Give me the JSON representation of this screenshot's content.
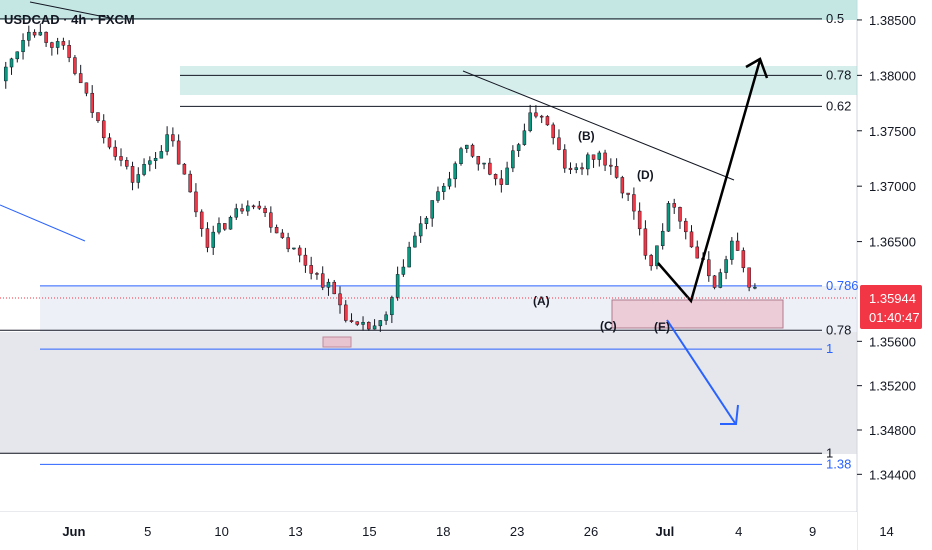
{
  "symbol_header": "USDCAD · 4h · FXCM",
  "price_tag": {
    "price": "1.35944",
    "countdown": "01:40:47",
    "color": "#f23645"
  },
  "chart_data": {
    "type": "candlestick",
    "ylim": [
      1.3406,
      1.3868
    ],
    "y_ticks": [
      "1.38500",
      "1.38000",
      "1.37500",
      "1.37000",
      "1.36500",
      "1.35600",
      "1.35200",
      "1.34800",
      "1.34400"
    ],
    "y_tick_values": [
      1.385,
      1.38,
      1.375,
      1.37,
      1.365,
      1.356,
      1.352,
      1.348,
      1.344
    ],
    "x_ticks": [
      "Jun",
      "5",
      "10",
      "13",
      "15",
      "18",
      "23",
      "26",
      "Jul",
      "4",
      "9",
      "14"
    ],
    "x_tick_values": [
      0.5,
      5.5,
      10.5,
      15.5,
      20.5,
      25.5,
      30.5,
      35.5,
      40.5,
      45.5,
      50.5,
      55.5
    ],
    "xlim": [
      -4.5,
      53.5
    ],
    "fib_levels": [
      {
        "label": "0.5",
        "price": 1.3851,
        "color": "#131722"
      },
      {
        "label": "0.78",
        "price": 1.38,
        "color": "#131722"
      },
      {
        "label": "0.62",
        "price": 1.3772,
        "color": "#131722"
      },
      {
        "label": "0.786",
        "price": 1.361,
        "color": "#2962ff"
      },
      {
        "label": "0.78",
        "price": 1.357,
        "color": "#131722"
      },
      {
        "label": "1",
        "price": 1.3553,
        "color": "#2962ff"
      },
      {
        "label": "1",
        "price": 1.3459,
        "color": "#131722"
      },
      {
        "label": "1.38",
        "price": 1.3449,
        "color": "#2962ff"
      }
    ],
    "wave_labels": [
      "(A)",
      "(B)",
      "(C)",
      "(D)",
      "(E)"
    ],
    "colors": {
      "up": "#089981",
      "down": "#f23645"
    },
    "candles": []
  }
}
